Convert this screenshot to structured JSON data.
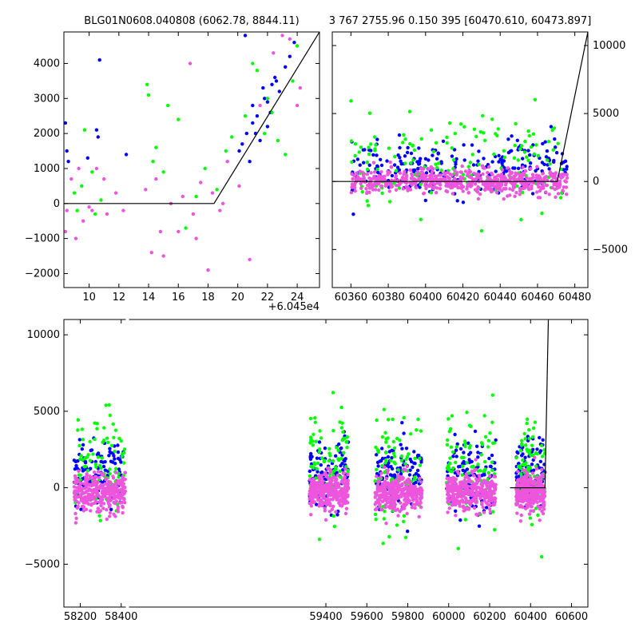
{
  "figure": {
    "title_left": "BLG01N0608.040808 (6062.78, 8844.11)",
    "title_right": "3 767 2755.96 0.150 395 [60470.610, 60473.897]",
    "offset_label": "+6.045e4"
  },
  "chart_data": [
    {
      "id": "top-left",
      "type": "scatter",
      "title": "BLG01N0608.040808 (6062.78, 8844.11)",
      "xlim": [
        8.3,
        25.5
      ],
      "ylim": [
        -2400,
        4900
      ],
      "x_offset_label": "+6.045e4",
      "xticks": [
        10,
        12,
        14,
        16,
        18,
        20,
        22,
        24
      ],
      "yticks": [
        -2000,
        -1000,
        0,
        1000,
        2000,
        3000,
        4000
      ],
      "model_line": [
        [
          8.3,
          0
        ],
        [
          18.4,
          0
        ],
        [
          25.5,
          4900
        ]
      ],
      "series": [
        {
          "color": "#0000ff",
          "points": [
            [
              8.4,
              2300
            ],
            [
              8.5,
              1500
            ],
            [
              8.6,
              1200
            ],
            [
              9.9,
              1300
            ],
            [
              10.5,
              2100
            ],
            [
              10.6,
              1900
            ],
            [
              10.7,
              4100
            ],
            [
              12.5,
              1400
            ],
            [
              20.1,
              1500
            ],
            [
              20.3,
              1700
            ],
            [
              20.6,
              2000
            ],
            [
              21.0,
              2300
            ],
            [
              21.3,
              2500
            ],
            [
              21.5,
              1800
            ],
            [
              21.8,
              3000
            ],
            [
              22.0,
              2900
            ],
            [
              22.3,
              3400
            ],
            [
              22.5,
              3600
            ],
            [
              22.8,
              3200
            ],
            [
              23.2,
              3900
            ],
            [
              23.5,
              4200
            ],
            [
              23.8,
              4600
            ],
            [
              21.0,
              2800
            ],
            [
              21.7,
              3300
            ],
            [
              22.2,
              2600
            ],
            [
              22.6,
              3500
            ],
            [
              20.5,
              4800
            ],
            [
              20.8,
              1200
            ],
            [
              21.2,
              2000
            ],
            [
              22.0,
              2200
            ]
          ]
        },
        {
          "color": "#00ff00",
          "points": [
            [
              9.0,
              300
            ],
            [
              9.2,
              -200
            ],
            [
              9.5,
              500
            ],
            [
              9.7,
              2100
            ],
            [
              10.2,
              900
            ],
            [
              10.4,
              -300
            ],
            [
              10.8,
              100
            ],
            [
              13.9,
              3400
            ],
            [
              14.0,
              3100
            ],
            [
              14.3,
              1200
            ],
            [
              14.5,
              1600
            ],
            [
              15.0,
              900
            ],
            [
              15.3,
              2800
            ],
            [
              16.0,
              2400
            ],
            [
              16.5,
              -700
            ],
            [
              17.2,
              200
            ],
            [
              17.8,
              1000
            ],
            [
              18.6,
              400
            ],
            [
              19.2,
              1500
            ],
            [
              19.6,
              1900
            ],
            [
              20.5,
              2500
            ],
            [
              21.0,
              4000
            ],
            [
              21.3,
              3800
            ],
            [
              21.8,
              2000
            ],
            [
              22.3,
              2600
            ],
            [
              22.7,
              1800
            ],
            [
              23.2,
              1400
            ],
            [
              23.7,
              3500
            ],
            [
              24.0,
              4500
            ],
            [
              22.0,
              3000
            ]
          ]
        },
        {
          "color": "#ee55dd",
          "points": [
            [
              8.4,
              -800
            ],
            [
              8.5,
              -200
            ],
            [
              8.8,
              700
            ],
            [
              9.1,
              -1000
            ],
            [
              9.3,
              1000
            ],
            [
              9.6,
              -500
            ],
            [
              10.0,
              -100
            ],
            [
              10.2,
              -200
            ],
            [
              10.5,
              1000
            ],
            [
              11.0,
              700
            ],
            [
              11.2,
              -300
            ],
            [
              11.8,
              300
            ],
            [
              12.3,
              -200
            ],
            [
              13.8,
              400
            ],
            [
              14.2,
              -1400
            ],
            [
              14.5,
              700
            ],
            [
              14.8,
              -800
            ],
            [
              15.0,
              -1500
            ],
            [
              15.5,
              0
            ],
            [
              16.3,
              200
            ],
            [
              16.8,
              4000
            ],
            [
              17.0,
              -300
            ],
            [
              17.5,
              600
            ],
            [
              18.0,
              -1900
            ],
            [
              18.3,
              300
            ],
            [
              18.8,
              -200
            ],
            [
              19.3,
              1200
            ],
            [
              20.1,
              500
            ],
            [
              20.8,
              -1600
            ],
            [
              21.5,
              2800
            ],
            [
              22.4,
              4300
            ],
            [
              23.0,
              4800
            ],
            [
              23.5,
              4700
            ],
            [
              24.0,
              2800
            ],
            [
              24.2,
              3300
            ],
            [
              19.0,
              0
            ],
            [
              17.2,
              -1000
            ],
            [
              16.0,
              -800
            ]
          ]
        }
      ]
    },
    {
      "id": "top-right",
      "type": "scatter",
      "title": "3 767 2755.96 0.150 395 [60470.610, 60473.897]",
      "xlim": [
        60350,
        60487
      ],
      "ylim": [
        -7800,
        11000
      ],
      "xticks": [
        60360,
        60380,
        60400,
        60420,
        60440,
        60460,
        60480
      ],
      "yticks": [
        -5000,
        0,
        5000,
        10000
      ],
      "model_line": [
        [
          60350,
          0
        ],
        [
          60470.6,
          0
        ],
        [
          60487,
          11000
        ]
      ],
      "series": [
        {
          "color": "#0000ff",
          "x_range": [
            60360,
            60476
          ],
          "y_center": 900,
          "y_spread": 1900,
          "n": 260
        },
        {
          "color": "#00ff00",
          "x_range": [
            60360,
            60476
          ],
          "y_center": 1300,
          "y_spread": 3400,
          "n": 150
        },
        {
          "color": "#ee55dd",
          "x_range": [
            60360,
            60476
          ],
          "y_center": 0,
          "y_spread": 900,
          "n": 600
        }
      ]
    },
    {
      "id": "bottom",
      "type": "scatter",
      "xlim": [
        58120,
        60680
      ],
      "ylim": [
        -7800,
        11000
      ],
      "xticks": [
        58200,
        58400,
        59400,
        59600,
        59800,
        60000,
        60200,
        60400,
        60600
      ],
      "yticks": [
        -5000,
        0,
        5000,
        10000
      ],
      "gap_x": 58430,
      "model_line": [
        [
          60300,
          0
        ],
        [
          60470.6,
          0
        ],
        [
          60487,
          11000
        ]
      ],
      "clusters": [
        [
          58170,
          58420
        ],
        [
          59320,
          59510
        ],
        [
          59640,
          59870
        ],
        [
          59990,
          60230
        ],
        [
          60330,
          60470
        ]
      ],
      "series": [
        {
          "color": "#0000ff",
          "y_center": 800,
          "y_spread": 2200,
          "n_per_cluster": 120
        },
        {
          "color": "#00ff00",
          "y_center": 1200,
          "y_spread": 3700,
          "n_per_cluster": 90
        },
        {
          "color": "#ee55dd",
          "y_center": -300,
          "y_spread": 1200,
          "n_per_cluster": 320
        }
      ]
    }
  ]
}
